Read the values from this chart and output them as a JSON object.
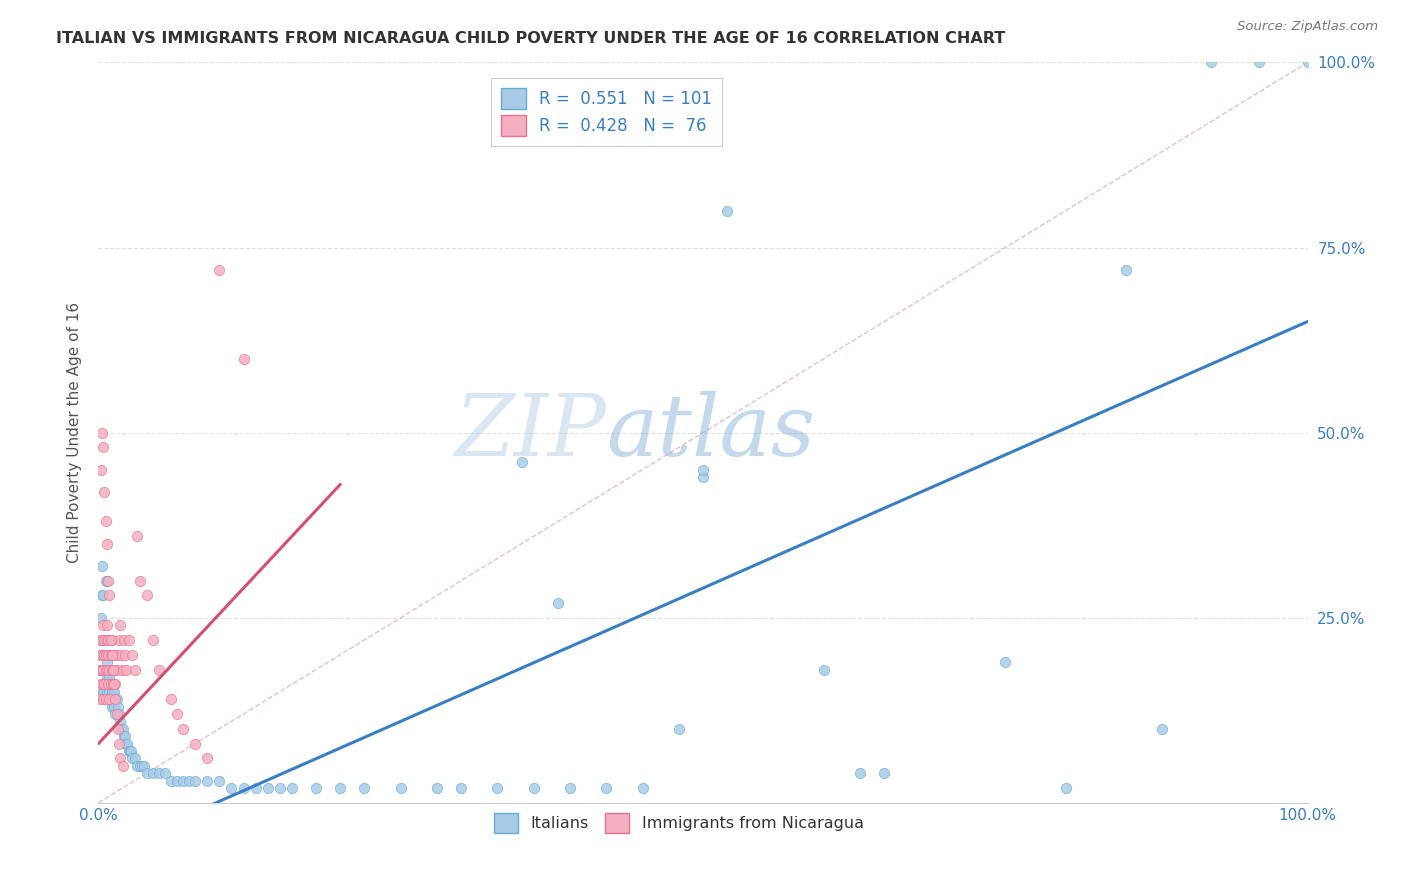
{
  "title": "ITALIAN VS IMMIGRANTS FROM NICARAGUA CHILD POVERTY UNDER THE AGE OF 16 CORRELATION CHART",
  "source": "Source: ZipAtlas.com",
  "ylabel": "Child Poverty Under the Age of 16",
  "legend_label1": "Italians",
  "legend_label2": "Immigrants from Nicaragua",
  "R1": "0.551",
  "N1": "101",
  "R2": "0.428",
  "N2": "76",
  "blue_color": "#a8cce8",
  "blue_edge_color": "#6aaad4",
  "pink_color": "#f4afc0",
  "pink_edge_color": "#e87090",
  "blue_line_color": "#3a7fc1",
  "pink_line_color": "#d45070",
  "diag_color": "#cccccc",
  "watermark_color": "#ccddf0",
  "background_color": "#ffffff",
  "grid_color": "#dddddd",
  "title_color": "#333333",
  "axis_color": "#3a7fc1",
  "blue_scatter_x": [
    0.001,
    0.002,
    0.002,
    0.003,
    0.003,
    0.003,
    0.004,
    0.004,
    0.004,
    0.005,
    0.005,
    0.005,
    0.006,
    0.006,
    0.006,
    0.007,
    0.007,
    0.007,
    0.008,
    0.008,
    0.008,
    0.009,
    0.009,
    0.01,
    0.01,
    0.01,
    0.011,
    0.011,
    0.012,
    0.012,
    0.013,
    0.013,
    0.014,
    0.015,
    0.016,
    0.017,
    0.018,
    0.019,
    0.02,
    0.021,
    0.022,
    0.023,
    0.024,
    0.025,
    0.026,
    0.027,
    0.028,
    0.03,
    0.032,
    0.034,
    0.036,
    0.038,
    0.04,
    0.045,
    0.05,
    0.055,
    0.06,
    0.065,
    0.07,
    0.075,
    0.08,
    0.09,
    0.1,
    0.11,
    0.12,
    0.13,
    0.14,
    0.15,
    0.16,
    0.18,
    0.2,
    0.22,
    0.25,
    0.28,
    0.3,
    0.33,
    0.36,
    0.39,
    0.42,
    0.45,
    0.35,
    0.38,
    0.48,
    0.5,
    0.5,
    0.52,
    0.6,
    0.63,
    0.65,
    0.75,
    0.8,
    0.85,
    0.88,
    0.92,
    0.96,
    1.0,
    0.003,
    0.004,
    0.006,
    0.007,
    0.009
  ],
  "blue_scatter_y": [
    0.18,
    0.2,
    0.25,
    0.2,
    0.22,
    0.28,
    0.15,
    0.18,
    0.22,
    0.18,
    0.2,
    0.15,
    0.16,
    0.18,
    0.14,
    0.17,
    0.19,
    0.15,
    0.18,
    0.2,
    0.16,
    0.15,
    0.17,
    0.14,
    0.16,
    0.18,
    0.15,
    0.13,
    0.16,
    0.14,
    0.13,
    0.15,
    0.12,
    0.14,
    0.13,
    0.12,
    0.11,
    0.1,
    0.1,
    0.09,
    0.09,
    0.08,
    0.08,
    0.07,
    0.07,
    0.07,
    0.06,
    0.06,
    0.05,
    0.05,
    0.05,
    0.05,
    0.04,
    0.04,
    0.04,
    0.04,
    0.03,
    0.03,
    0.03,
    0.03,
    0.03,
    0.03,
    0.03,
    0.02,
    0.02,
    0.02,
    0.02,
    0.02,
    0.02,
    0.02,
    0.02,
    0.02,
    0.02,
    0.02,
    0.02,
    0.02,
    0.02,
    0.02,
    0.02,
    0.02,
    0.46,
    0.27,
    0.1,
    0.44,
    0.45,
    0.8,
    0.18,
    0.04,
    0.04,
    0.19,
    0.02,
    0.72,
    0.1,
    1.0,
    1.0,
    1.0,
    0.32,
    0.28,
    0.3,
    0.3,
    0.16
  ],
  "pink_scatter_x": [
    0.001,
    0.001,
    0.002,
    0.002,
    0.002,
    0.003,
    0.003,
    0.003,
    0.003,
    0.004,
    0.004,
    0.004,
    0.005,
    0.005,
    0.005,
    0.006,
    0.006,
    0.006,
    0.007,
    0.007,
    0.007,
    0.008,
    0.008,
    0.008,
    0.009,
    0.009,
    0.01,
    0.01,
    0.011,
    0.011,
    0.012,
    0.012,
    0.013,
    0.014,
    0.015,
    0.016,
    0.017,
    0.018,
    0.019,
    0.02,
    0.021,
    0.022,
    0.023,
    0.025,
    0.028,
    0.03,
    0.032,
    0.034,
    0.04,
    0.045,
    0.05,
    0.06,
    0.065,
    0.07,
    0.08,
    0.09,
    0.1,
    0.12,
    0.002,
    0.003,
    0.004,
    0.005,
    0.006,
    0.007,
    0.008,
    0.009,
    0.01,
    0.011,
    0.012,
    0.013,
    0.014,
    0.015,
    0.016,
    0.017,
    0.018,
    0.02
  ],
  "pink_scatter_y": [
    0.18,
    0.14,
    0.2,
    0.16,
    0.22,
    0.18,
    0.2,
    0.22,
    0.16,
    0.18,
    0.24,
    0.14,
    0.2,
    0.22,
    0.16,
    0.18,
    0.2,
    0.14,
    0.22,
    0.18,
    0.24,
    0.2,
    0.16,
    0.22,
    0.18,
    0.14,
    0.2,
    0.16,
    0.22,
    0.18,
    0.16,
    0.2,
    0.18,
    0.16,
    0.2,
    0.18,
    0.22,
    0.24,
    0.2,
    0.18,
    0.22,
    0.2,
    0.18,
    0.22,
    0.2,
    0.18,
    0.36,
    0.3,
    0.28,
    0.22,
    0.18,
    0.14,
    0.12,
    0.1,
    0.08,
    0.06,
    0.72,
    0.6,
    0.45,
    0.5,
    0.48,
    0.42,
    0.38,
    0.35,
    0.3,
    0.28,
    0.22,
    0.2,
    0.18,
    0.16,
    0.14,
    0.12,
    0.1,
    0.08,
    0.06,
    0.05
  ],
  "blue_line_x": [
    0.0,
    1.0
  ],
  "blue_line_y": [
    -0.07,
    0.65
  ],
  "pink_line_x": [
    0.0,
    0.2
  ],
  "pink_line_y": [
    0.08,
    0.43
  ],
  "diag_line_x": [
    0.0,
    1.0
  ],
  "diag_line_y": [
    0.0,
    1.0
  ],
  "xlim": [
    0,
    1.0
  ],
  "ylim": [
    0,
    1.0
  ],
  "xticks": [
    0.0,
    1.0
  ],
  "xtick_labels": [
    "0.0%",
    "100.0%"
  ],
  "yticks": [
    0.25,
    0.5,
    0.75,
    1.0
  ],
  "ytick_labels": [
    "25.0%",
    "50.0%",
    "75.0%",
    "100.0%"
  ]
}
